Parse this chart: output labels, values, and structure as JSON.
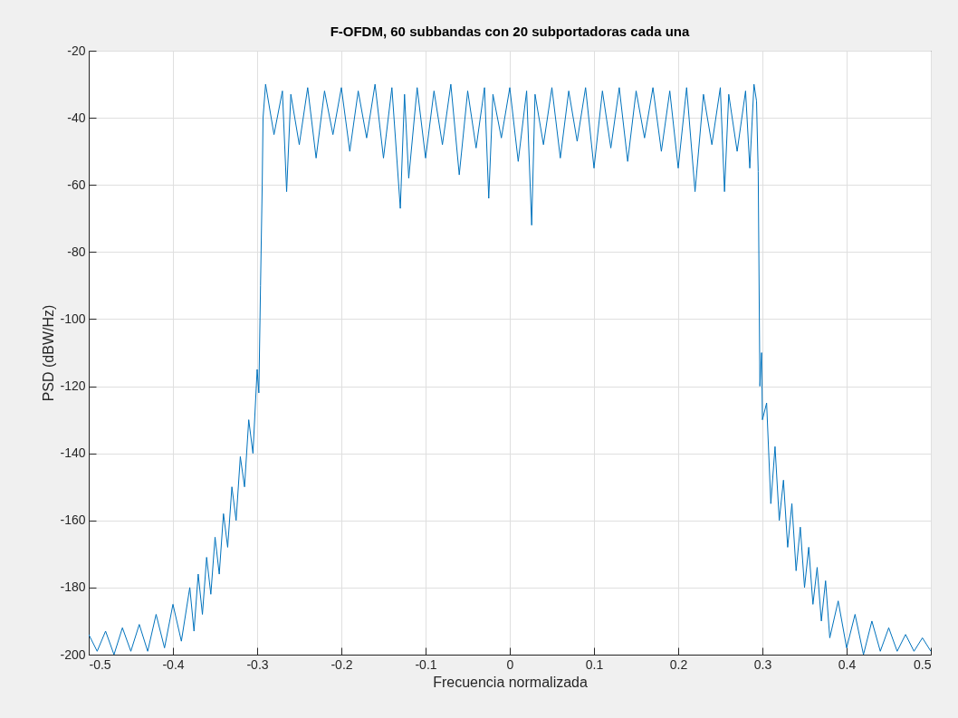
{
  "chart_data": {
    "type": "line",
    "title": "F-OFDM, 60 subbandas con 20 subportadoras cada una",
    "xlabel": "Frecuencia normalizada",
    "ylabel": "PSD (dBW/Hz)",
    "xlim": [
      -0.5,
      0.5
    ],
    "xticks": [
      -0.5,
      -0.4,
      -0.3,
      -0.2,
      -0.1,
      0,
      0.1,
      0.2,
      0.3,
      0.4,
      0.5
    ],
    "ylim": [
      -200,
      -20
    ],
    "yticks": [
      -200,
      -180,
      -160,
      -140,
      -120,
      -100,
      -80,
      -60,
      -40,
      -20
    ],
    "grid": true,
    "series": [
      {
        "color": "#0072bd",
        "x": [
          -0.5,
          -0.49,
          -0.48,
          -0.47,
          -0.46,
          -0.45,
          -0.44,
          -0.43,
          -0.42,
          -0.41,
          -0.4,
          -0.39,
          -0.38,
          -0.375,
          -0.37,
          -0.365,
          -0.36,
          -0.355,
          -0.35,
          -0.345,
          -0.34,
          -0.335,
          -0.33,
          -0.325,
          -0.32,
          -0.315,
          -0.31,
          -0.305,
          -0.3,
          -0.298,
          -0.296,
          -0.294,
          -0.293,
          -0.29,
          -0.28,
          -0.27,
          -0.265,
          -0.26,
          -0.25,
          -0.24,
          -0.23,
          -0.22,
          -0.21,
          -0.2,
          -0.19,
          -0.18,
          -0.17,
          -0.16,
          -0.15,
          -0.14,
          -0.13,
          -0.125,
          -0.12,
          -0.11,
          -0.1,
          -0.09,
          -0.08,
          -0.07,
          -0.06,
          -0.05,
          -0.04,
          -0.03,
          -0.025,
          -0.02,
          -0.01,
          0,
          0.01,
          0.02,
          0.026,
          0.03,
          0.04,
          0.05,
          0.06,
          0.07,
          0.08,
          0.09,
          0.1,
          0.11,
          0.12,
          0.13,
          0.14,
          0.15,
          0.16,
          0.17,
          0.18,
          0.19,
          0.2,
          0.21,
          0.22,
          0.23,
          0.24,
          0.25,
          0.255,
          0.26,
          0.27,
          0.28,
          0.285,
          0.29,
          0.293,
          0.295,
          0.297,
          0.299,
          0.3,
          0.305,
          0.31,
          0.315,
          0.32,
          0.325,
          0.33,
          0.335,
          0.34,
          0.345,
          0.35,
          0.355,
          0.36,
          0.365,
          0.37,
          0.375,
          0.38,
          0.39,
          0.4,
          0.41,
          0.42,
          0.43,
          0.44,
          0.45,
          0.46,
          0.47,
          0.48,
          0.49,
          0.5
        ],
        "values": [
          -194,
          -199,
          -193,
          -200,
          -192,
          -199,
          -191,
          -199,
          -188,
          -198,
          -185,
          -196,
          -180,
          -193,
          -176,
          -188,
          -171,
          -182,
          -165,
          -176,
          -158,
          -168,
          -150,
          -160,
          -141,
          -150,
          -130,
          -140,
          -115,
          -122,
          -90,
          -60,
          -40,
          -30,
          -45,
          -32,
          -62,
          -33,
          -48,
          -31,
          -52,
          -32,
          -45,
          -31,
          -50,
          -32,
          -46,
          -30,
          -52,
          -31,
          -67,
          -33,
          -58,
          -31,
          -52,
          -32,
          -48,
          -30,
          -57,
          -32,
          -49,
          -31,
          -64,
          -33,
          -46,
          -31,
          -53,
          -32,
          -72,
          -33,
          -48,
          -31,
          -52,
          -32,
          -47,
          -31,
          -55,
          -32,
          -49,
          -31,
          -53,
          -32,
          -46,
          -31,
          -50,
          -32,
          -55,
          -31,
          -62,
          -33,
          -48,
          -31,
          -62,
          -33,
          -50,
          -32,
          -55,
          -30,
          -35,
          -56,
          -120,
          -110,
          -130,
          -125,
          -155,
          -138,
          -160,
          -148,
          -168,
          -155,
          -175,
          -162,
          -180,
          -168,
          -185,
          -174,
          -190,
          -178,
          -195,
          -184,
          -198,
          -188,
          -200,
          -190,
          -199,
          -192,
          -199,
          -194,
          -199,
          -195,
          -199
        ]
      }
    ]
  }
}
